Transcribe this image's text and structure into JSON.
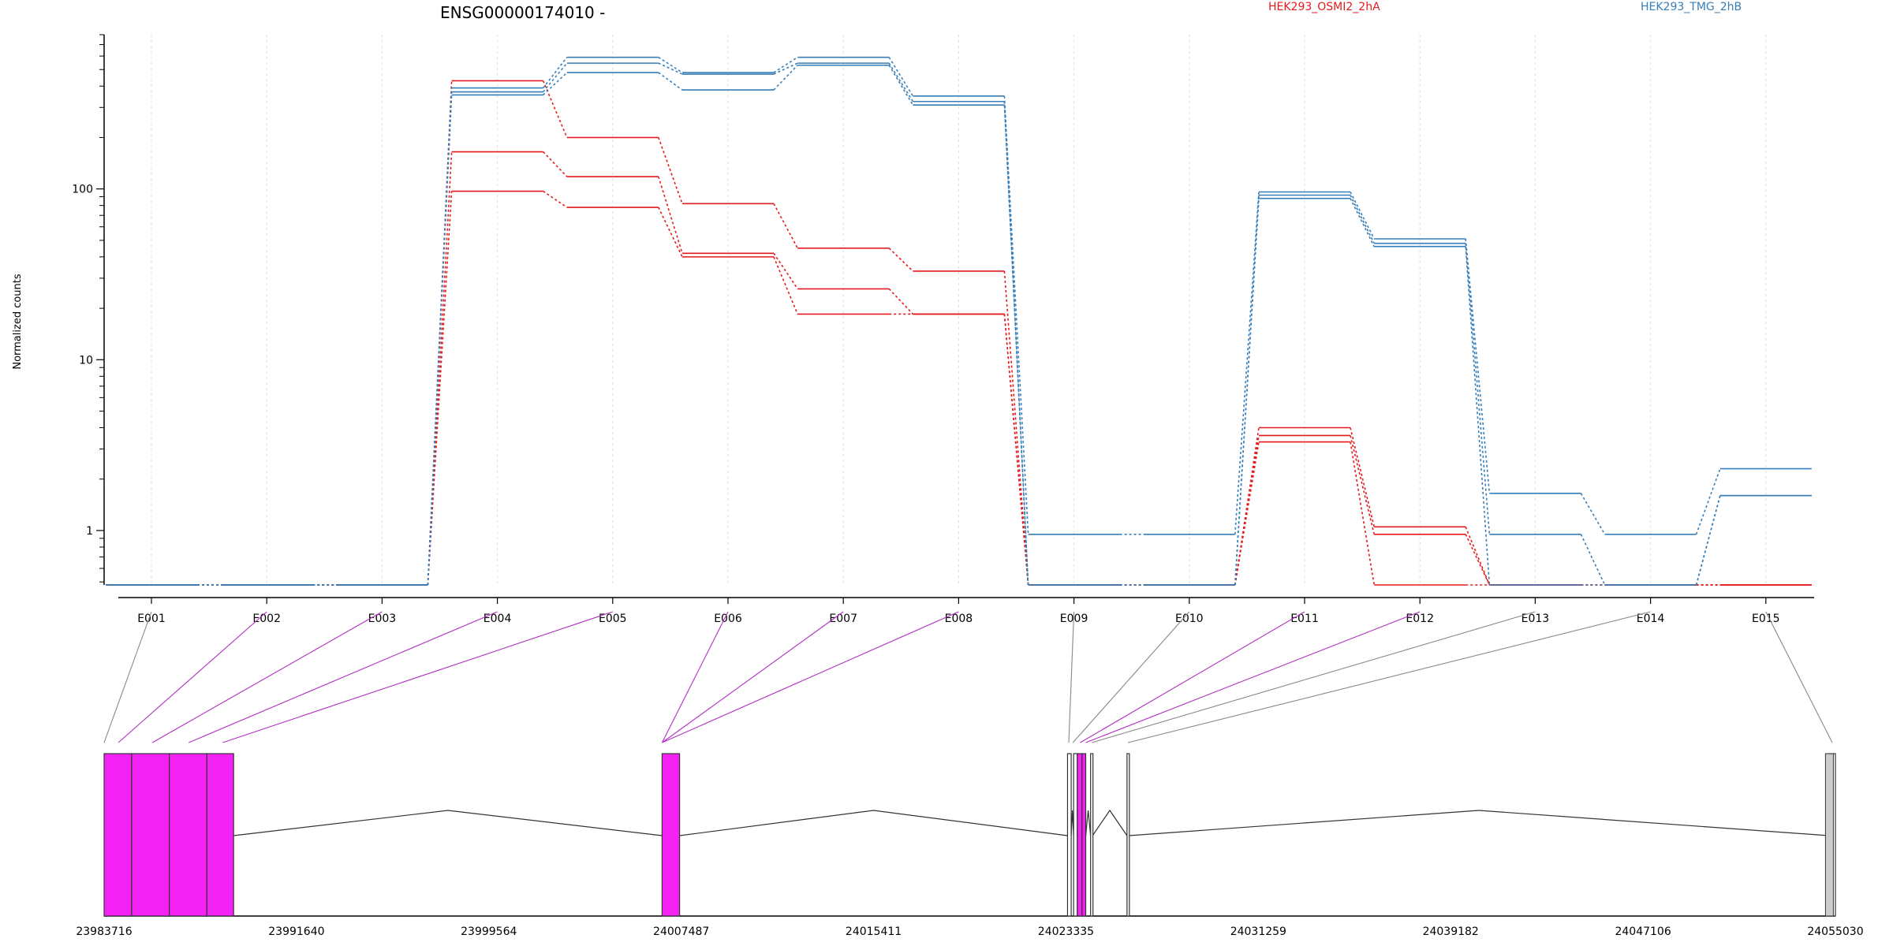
{
  "chart_data": {
    "type": "line",
    "title": "ENSG00000174010 -",
    "ylabel": "Normalized counts",
    "y_scale": "log",
    "ylim": [
      0.48,
      800
    ],
    "y_ticks": [
      1,
      10,
      100
    ],
    "y_tick_labels": [
      "1",
      "10",
      "100"
    ],
    "grid": "vertical dotted",
    "legend_placement": "top-right",
    "categories": [
      "E001",
      "E002",
      "E003",
      "E004",
      "E005",
      "E006",
      "E007",
      "E008",
      "E009",
      "E010",
      "E011",
      "E012",
      "E013",
      "E014",
      "E015"
    ],
    "series": [
      {
        "name": "HEK293_OSMI2_2hA",
        "color": "#e41a1c",
        "replicates": [
          [
            0.48,
            0.48,
            0.48,
            430,
            200,
            82,
            45,
            33,
            0.48,
            0.48,
            4.0,
            1.05,
            0.48,
            0.48,
            0.48
          ],
          [
            0.48,
            0.48,
            0.48,
            165,
            118,
            42,
            26,
            18.5,
            0.48,
            0.48,
            3.6,
            0.95,
            0.48,
            0.48,
            0.48
          ],
          [
            0.48,
            0.48,
            0.48,
            97,
            78,
            40,
            18.5,
            18.5,
            0.48,
            0.48,
            3.3,
            0.48,
            0.48,
            0.48,
            0.48
          ]
        ]
      },
      {
        "name": "HEK293_TMG_2hB",
        "color": "#377eb8",
        "replicates": [
          [
            0.48,
            0.48,
            0.48,
            390,
            590,
            480,
            590,
            350,
            0.95,
            0.95,
            96,
            51,
            1.65,
            0.95,
            2.3
          ],
          [
            0.48,
            0.48,
            0.48,
            370,
            545,
            470,
            545,
            325,
            0.48,
            0.48,
            92,
            48,
            0.95,
            0.48,
            1.6
          ],
          [
            0.48,
            0.48,
            0.48,
            355,
            480,
            380,
            530,
            310,
            0.48,
            0.48,
            88,
            46,
            0.48,
            0.48,
            1.6
          ]
        ]
      }
    ],
    "exon_colors": [
      "#c0c0c0",
      "#f321f3",
      "#f321f3",
      "#f321f3",
      "#f321f3",
      "#f321f3",
      "#f321f3",
      "#f321f3",
      "#c0c0c0",
      "#c0c0c0",
      "#f321f3",
      "#f321f3",
      "#c0c0c0",
      "#c0c0c0",
      "#c0c0c0"
    ],
    "gene_model": {
      "coordinate_ticks": [
        "23983716",
        "23991640",
        "23999564",
        "24007487",
        "24015411",
        "24023335",
        "24031259",
        "24039182",
        "24047106",
        "24055030"
      ],
      "genomic_range": [
        23983716,
        24055030
      ],
      "exons": [
        {
          "id": "E001",
          "start": 23983716,
          "end": 23984850,
          "highlight": true
        },
        {
          "id": "E002",
          "start": 23984850,
          "end": 23986400,
          "highlight": true
        },
        {
          "id": "E003",
          "start": 23986400,
          "end": 23987950,
          "highlight": true
        },
        {
          "id": "E004",
          "start": 23987950,
          "end": 23989050,
          "highlight": true
        },
        {
          "id": "E008",
          "start": 24006700,
          "end": 24007420,
          "highlight": true
        },
        {
          "id": "E009",
          "start": 24023400,
          "end": 24023550,
          "highlight": false
        },
        {
          "id": "E010",
          "start": 24023650,
          "end": 24023800,
          "highlight": false
        },
        {
          "id": "E011",
          "start": 24023800,
          "end": 24024000,
          "highlight": true
        },
        {
          "id": "E012",
          "start": 24024000,
          "end": 24024150,
          "highlight": true
        },
        {
          "id": "E013",
          "start": 24024350,
          "end": 24024430,
          "highlight": false
        },
        {
          "id": "E014",
          "start": 24025850,
          "end": 24025930,
          "highlight": false
        },
        {
          "id": "E015",
          "start": 24054750,
          "end": 24055030,
          "highlight": false
        }
      ],
      "connector_targets": [
        23983716,
        23984300,
        23985700,
        23987200,
        23988600,
        24006700,
        24006700,
        24006700,
        24023450,
        24023620,
        24023920,
        24024150,
        24024400,
        24025890,
        24054900
      ]
    }
  }
}
